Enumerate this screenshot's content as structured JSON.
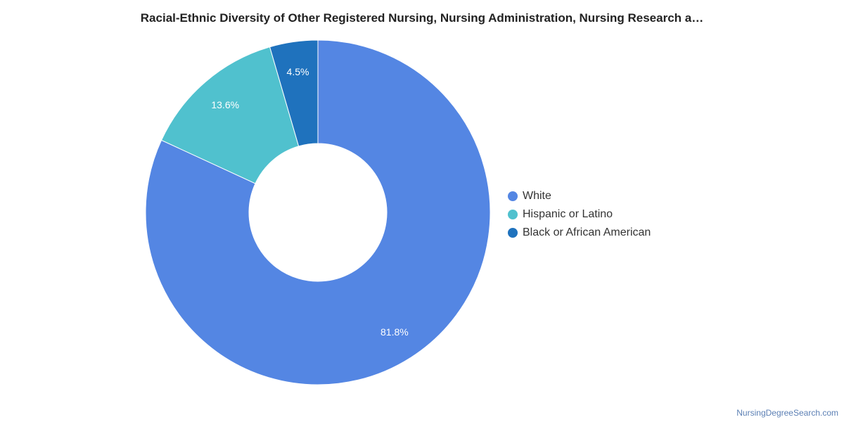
{
  "chart_data": {
    "type": "pie",
    "title": "Racial-Ethnic Diversity of Other Registered Nursing, Nursing Administration, Nursing Research a…",
    "categories": [
      "White",
      "Hispanic or Latino",
      "Black or African American"
    ],
    "values": [
      81.8,
      13.6,
      4.5
    ],
    "labels": [
      "81.8%",
      "13.6%",
      "4.5%"
    ],
    "colors": [
      "#5486e3",
      "#50c1ce",
      "#1f72bd"
    ],
    "legend_position": "right",
    "donut": true
  },
  "legend": {
    "items": [
      {
        "label": "White",
        "color": "#5486e3"
      },
      {
        "label": "Hispanic or Latino",
        "color": "#50c1ce"
      },
      {
        "label": "Black or African American",
        "color": "#1f72bd"
      }
    ]
  },
  "footer": {
    "credit": "NursingDegreeSearch.com"
  }
}
